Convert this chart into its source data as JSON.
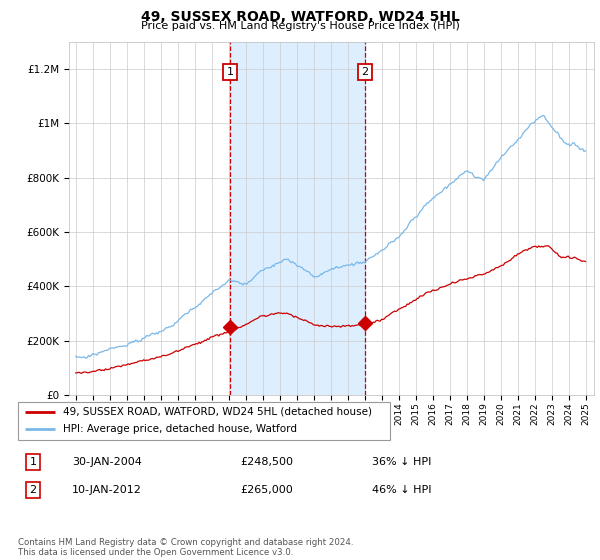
{
  "title": "49, SUSSEX ROAD, WATFORD, WD24 5HL",
  "subtitle": "Price paid vs. HM Land Registry's House Price Index (HPI)",
  "legend_line1": "49, SUSSEX ROAD, WATFORD, WD24 5HL (detached house)",
  "legend_line2": "HPI: Average price, detached house, Watford",
  "footnote": "Contains HM Land Registry data © Crown copyright and database right 2024.\nThis data is licensed under the Open Government Licence v3.0.",
  "transaction1_date": "30-JAN-2004",
  "transaction1_price": "£248,500",
  "transaction1_hpi": "36% ↓ HPI",
  "transaction2_date": "10-JAN-2012",
  "transaction2_price": "£265,000",
  "transaction2_hpi": "46% ↓ HPI",
  "hpi_color": "#7ab8e8",
  "price_color": "#cc0000",
  "shade_color": "#ddeeff",
  "ylim": [
    0,
    1300000
  ],
  "yticks": [
    0,
    200000,
    400000,
    600000,
    800000,
    1000000,
    1200000
  ],
  "ytick_labels": [
    "£0",
    "£200K",
    "£400K",
    "£600K",
    "£800K",
    "£1M",
    "£1.2M"
  ],
  "transaction1_x": 2004.08,
  "transaction2_x": 2012.03,
  "transaction1_y": 248500,
  "transaction2_y": 265000,
  "xmin": 1995,
  "xmax": 2025
}
